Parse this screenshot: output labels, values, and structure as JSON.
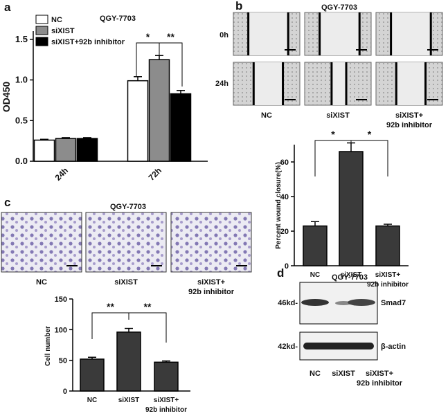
{
  "chart_data": [
    {
      "type": "bar",
      "title": "QGY-7703",
      "y_label": "OD450",
      "categories": [
        "24h",
        "72h"
      ],
      "series": [
        {
          "name": "NC",
          "color": "#ffffff",
          "values": [
            0.26,
            0.99
          ],
          "errors": [
            0.01,
            0.05
          ]
        },
        {
          "name": "siXIST",
          "color": "#8c8c8c",
          "values": [
            0.28,
            1.25
          ],
          "errors": [
            0.01,
            0.05
          ]
        },
        {
          "name": "siXIST+92b inhibitor",
          "color": "#000000",
          "values": [
            0.28,
            0.83
          ],
          "errors": [
            0.01,
            0.04
          ]
        }
      ],
      "ylim": [
        0,
        1.6
      ],
      "yticks": [
        {
          "value": 0,
          "label": "0.0"
        },
        0.5,
        {
          "value": 1,
          "label": "1.0"
        },
        1.5
      ],
      "annotations": [
        "*",
        "**"
      ]
    },
    {
      "type": "bar",
      "y_label": "Percent wound closure(%)",
      "categories": [
        "NC",
        "siXIST",
        "siXIST+\n92b inhibitor"
      ],
      "values": [
        23,
        66,
        23
      ],
      "errors": [
        2.5,
        5,
        1
      ],
      "color": "#3a3a3a",
      "ylim": [
        0,
        70
      ],
      "yticks": [
        0,
        20,
        40,
        60
      ],
      "annotations": [
        "*",
        "*"
      ]
    },
    {
      "type": "bar",
      "y_label": "Cell number",
      "categories": [
        "NC",
        "siXIST",
        "siXIST+\n92b inhibitor"
      ],
      "values": [
        52,
        96,
        47
      ],
      "errors": [
        3,
        6,
        2
      ],
      "color": "#3a3a3a",
      "ylim": [
        0,
        150
      ],
      "yticks": [
        0,
        50,
        100,
        150
      ],
      "annotations": [
        "**",
        "**"
      ]
    }
  ],
  "panels": {
    "labels": [
      "a",
      "b",
      "c",
      "d"
    ],
    "wound": {
      "title": "QGY-7703",
      "rows": [
        "0h",
        "24h"
      ],
      "columns": [
        "NC",
        "siXIST",
        "siXIST+\n92b inhibitor"
      ]
    },
    "transwell": {
      "title": "QGY-7703",
      "columns": [
        "NC",
        "siXIST",
        "siXIST+\n92b inhibitor"
      ]
    },
    "blot": {
      "title": "QGY-7703",
      "markers": [
        "46kd-",
        "42kd-"
      ],
      "proteins": [
        "Smad7",
        "β-actin"
      ],
      "columns": [
        "NC",
        "siXIST",
        "siXIST+\n92b inhibitor"
      ]
    }
  }
}
